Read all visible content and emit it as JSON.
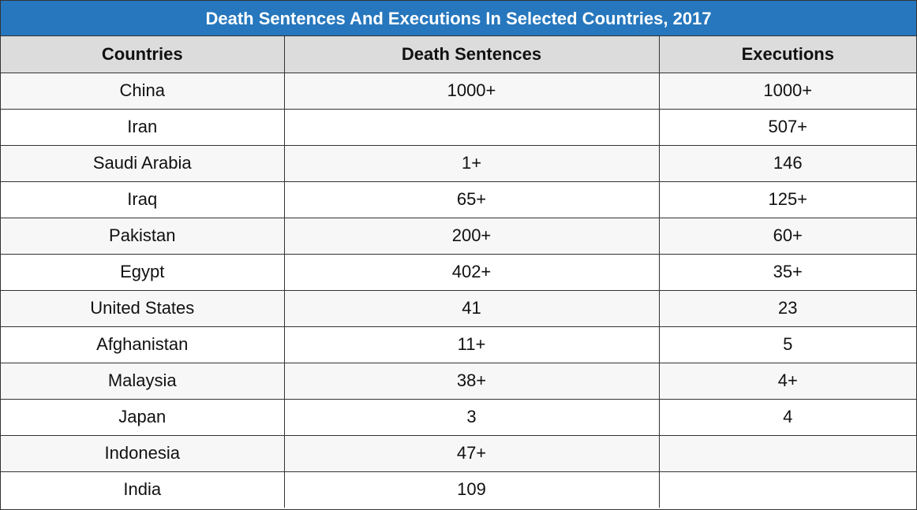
{
  "chart_data": {
    "type": "table",
    "title": "Death Sentences And Executions In Selected Countries, 2017",
    "columns": [
      "Countries",
      "Death Sentences",
      "Executions"
    ],
    "rows": [
      [
        "China",
        "1000+",
        "1000+"
      ],
      [
        "Iran",
        "",
        "507+"
      ],
      [
        "Saudi Arabia",
        "1+",
        "146"
      ],
      [
        "Iraq",
        "65+",
        "125+"
      ],
      [
        "Pakistan",
        "200+",
        "60+"
      ],
      [
        "Egypt",
        "402+",
        "35+"
      ],
      [
        "United States",
        "41",
        "23"
      ],
      [
        "Afghanistan",
        "11+",
        "5"
      ],
      [
        "Malaysia",
        "38+",
        "4+"
      ],
      [
        "Japan",
        "3",
        "4"
      ],
      [
        "Indonesia",
        "47+",
        ""
      ],
      [
        "India",
        "109",
        ""
      ]
    ],
    "colors": {
      "title_bar": "#2677bd",
      "header_bg": "#dcdcdc",
      "row_alt": "#f7f7f7",
      "border": "#333333"
    }
  }
}
